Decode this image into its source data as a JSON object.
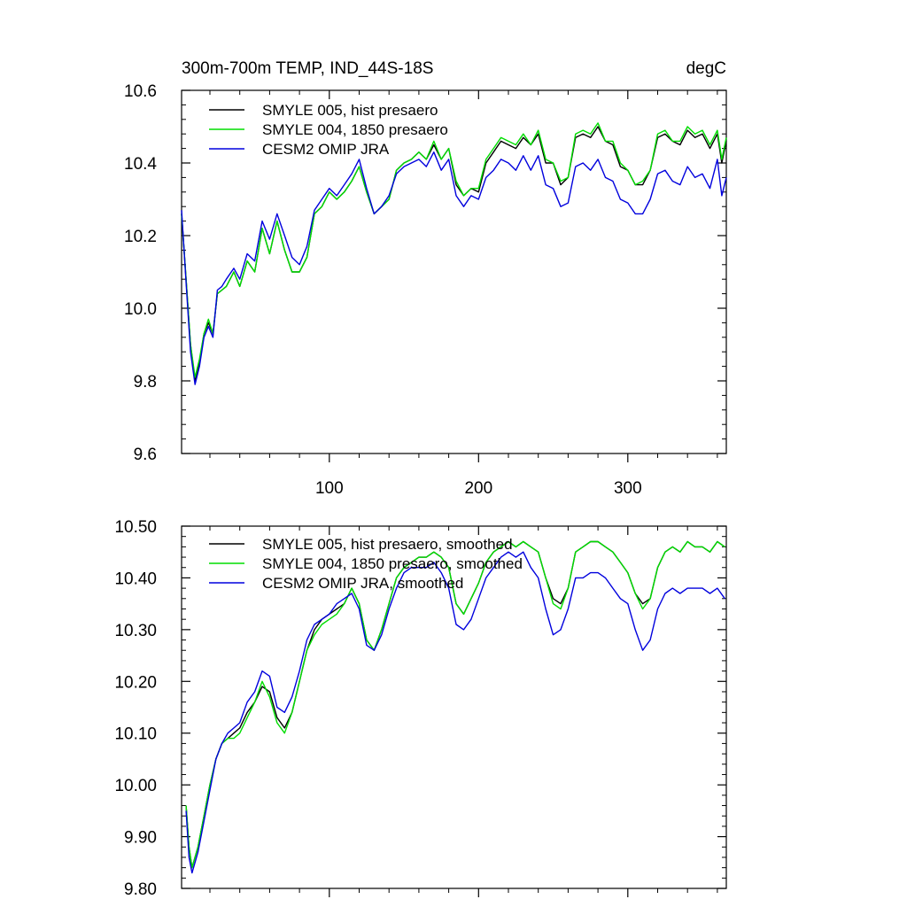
{
  "chart_data": [
    {
      "type": "line",
      "title": "300m-700m TEMP, IND_44S-18S",
      "units": "degC",
      "xlim": [
        1,
        366
      ],
      "ylim": [
        9.6,
        10.6
      ],
      "x_ticks": [
        100,
        200,
        300
      ],
      "x_tick_labels": [
        "100",
        "200",
        "300"
      ],
      "y_ticks": [
        9.6,
        9.8,
        10.0,
        10.2,
        10.4,
        10.6
      ],
      "y_tick_labels": [
        "9.6",
        "9.8",
        "10.0",
        "10.2",
        "10.4",
        "10.6"
      ],
      "grid": false,
      "legend": "top-left",
      "series": [
        {
          "name": "SMYLE 005, hist presaero",
          "color": "#000000",
          "x": [
            1,
            4,
            7,
            10,
            13,
            16,
            19,
            22,
            25,
            28,
            31,
            36,
            40,
            45,
            50,
            55,
            60,
            65,
            70,
            75,
            80,
            85,
            90,
            95,
            100,
            105,
            110,
            115,
            120,
            125,
            130,
            135,
            140,
            145,
            150,
            155,
            160,
            165,
            170,
            175,
            180,
            185,
            190,
            195,
            200,
            205,
            210,
            215,
            220,
            225,
            230,
            235,
            240,
            245,
            250,
            255,
            260,
            265,
            270,
            275,
            280,
            285,
            290,
            295,
            300,
            305,
            310,
            315,
            320,
            325,
            330,
            335,
            340,
            345,
            350,
            355,
            360,
            363,
            366
          ],
          "y": [
            10.26,
            10.08,
            9.9,
            9.8,
            9.85,
            9.93,
            9.96,
            9.93,
            10.04,
            10.05,
            10.06,
            10.1,
            10.06,
            10.13,
            10.1,
            10.22,
            10.15,
            10.24,
            10.16,
            10.1,
            10.1,
            10.14,
            10.26,
            10.28,
            10.32,
            10.3,
            10.32,
            10.35,
            10.39,
            10.32,
            10.26,
            10.28,
            10.3,
            10.38,
            10.4,
            10.41,
            10.43,
            10.41,
            10.45,
            10.41,
            10.44,
            10.34,
            10.31,
            10.33,
            10.32,
            10.4,
            10.43,
            10.46,
            10.45,
            10.44,
            10.47,
            10.45,
            10.48,
            10.4,
            10.4,
            10.34,
            10.36,
            10.47,
            10.48,
            10.47,
            10.5,
            10.46,
            10.45,
            10.39,
            10.38,
            10.34,
            10.34,
            10.38,
            10.47,
            10.48,
            10.46,
            10.45,
            10.49,
            10.47,
            10.48,
            10.44,
            10.48,
            10.4,
            10.46
          ]
        },
        {
          "name": "SMYLE 004, 1850 presaero",
          "color": "#00dd00",
          "x": [
            1,
            4,
            7,
            10,
            13,
            16,
            19,
            22,
            25,
            28,
            31,
            36,
            40,
            45,
            50,
            55,
            60,
            65,
            70,
            75,
            80,
            85,
            90,
            95,
            100,
            105,
            110,
            115,
            120,
            125,
            130,
            135,
            140,
            145,
            150,
            155,
            160,
            165,
            170,
            175,
            180,
            185,
            190,
            195,
            200,
            205,
            210,
            215,
            220,
            225,
            230,
            235,
            240,
            245,
            250,
            255,
            260,
            265,
            270,
            275,
            280,
            285,
            290,
            295,
            300,
            305,
            310,
            315,
            320,
            325,
            330,
            335,
            340,
            345,
            350,
            355,
            360,
            363,
            366
          ],
          "y": [
            10.26,
            10.08,
            9.9,
            9.81,
            9.86,
            9.93,
            9.97,
            9.93,
            10.04,
            10.05,
            10.06,
            10.1,
            10.06,
            10.13,
            10.1,
            10.22,
            10.15,
            10.24,
            10.16,
            10.1,
            10.1,
            10.14,
            10.26,
            10.28,
            10.32,
            10.3,
            10.32,
            10.35,
            10.39,
            10.32,
            10.26,
            10.28,
            10.3,
            10.38,
            10.4,
            10.41,
            10.43,
            10.41,
            10.46,
            10.41,
            10.44,
            10.35,
            10.31,
            10.33,
            10.33,
            10.41,
            10.44,
            10.47,
            10.46,
            10.45,
            10.48,
            10.45,
            10.49,
            10.41,
            10.4,
            10.35,
            10.36,
            10.48,
            10.49,
            10.48,
            10.51,
            10.46,
            10.46,
            10.4,
            10.38,
            10.34,
            10.35,
            10.38,
            10.48,
            10.49,
            10.46,
            10.46,
            10.5,
            10.48,
            10.49,
            10.45,
            10.49,
            10.41,
            10.47
          ]
        },
        {
          "name": "CESM2 OMIP JRA",
          "color": "#0000dd",
          "x": [
            1,
            4,
            7,
            10,
            13,
            16,
            19,
            22,
            25,
            28,
            31,
            36,
            40,
            45,
            50,
            55,
            60,
            65,
            70,
            75,
            80,
            85,
            90,
            95,
            100,
            105,
            110,
            115,
            120,
            125,
            130,
            135,
            140,
            145,
            150,
            155,
            160,
            165,
            170,
            175,
            180,
            185,
            190,
            195,
            200,
            205,
            210,
            215,
            220,
            225,
            230,
            235,
            240,
            245,
            250,
            255,
            260,
            265,
            270,
            275,
            280,
            285,
            290,
            295,
            300,
            305,
            310,
            315,
            320,
            325,
            330,
            335,
            340,
            345,
            350,
            355,
            360,
            363,
            366
          ],
          "y": [
            10.27,
            10.07,
            9.88,
            9.79,
            9.84,
            9.92,
            9.95,
            9.92,
            10.05,
            10.06,
            10.08,
            10.11,
            10.08,
            10.15,
            10.13,
            10.24,
            10.19,
            10.26,
            10.2,
            10.14,
            10.12,
            10.17,
            10.27,
            10.3,
            10.33,
            10.31,
            10.34,
            10.37,
            10.41,
            10.33,
            10.26,
            10.28,
            10.31,
            10.37,
            10.39,
            10.4,
            10.41,
            10.39,
            10.43,
            10.38,
            10.41,
            10.31,
            10.28,
            10.31,
            10.3,
            10.36,
            10.38,
            10.41,
            10.4,
            10.38,
            10.42,
            10.38,
            10.42,
            10.34,
            10.33,
            10.28,
            10.29,
            10.39,
            10.4,
            10.38,
            10.41,
            10.36,
            10.35,
            10.3,
            10.29,
            10.26,
            10.26,
            10.3,
            10.37,
            10.38,
            10.35,
            10.34,
            10.39,
            10.36,
            10.37,
            10.33,
            10.41,
            10.31,
            10.36
          ]
        }
      ]
    },
    {
      "type": "line",
      "title": "",
      "xlim": [
        1,
        366
      ],
      "ylim": [
        9.8,
        10.5
      ],
      "x_ticks": [
        100,
        200,
        300
      ],
      "x_tick_labels": [],
      "y_ticks": [
        9.8,
        9.9,
        10.0,
        10.1,
        10.2,
        10.3,
        10.4,
        10.5
      ],
      "y_tick_labels": [
        "9.80",
        "9.90",
        "10.00",
        "10.10",
        "10.20",
        "10.30",
        "10.40",
        "10.50"
      ],
      "grid": false,
      "legend": "top-left",
      "series": [
        {
          "name": "SMYLE 005, hist presaero, smoothed",
          "color": "#000000",
          "x": [
            4,
            6,
            8,
            12,
            16,
            20,
            24,
            28,
            32,
            36,
            40,
            45,
            50,
            55,
            60,
            65,
            70,
            75,
            80,
            85,
            90,
            95,
            100,
            105,
            110,
            115,
            120,
            125,
            130,
            135,
            140,
            145,
            150,
            155,
            160,
            165,
            170,
            175,
            180,
            185,
            190,
            195,
            200,
            205,
            210,
            215,
            220,
            225,
            230,
            235,
            240,
            245,
            250,
            255,
            260,
            265,
            270,
            275,
            280,
            285,
            290,
            295,
            300,
            305,
            310,
            315,
            320,
            325,
            330,
            335,
            340,
            345,
            350,
            355,
            360,
            365
          ],
          "y": [
            9.96,
            9.88,
            9.84,
            9.88,
            9.94,
            10.0,
            10.05,
            10.08,
            10.09,
            10.1,
            10.11,
            10.14,
            10.16,
            10.19,
            10.18,
            10.13,
            10.11,
            10.14,
            10.2,
            10.26,
            10.3,
            10.32,
            10.33,
            10.34,
            10.35,
            10.38,
            10.35,
            10.28,
            10.26,
            10.3,
            10.35,
            10.4,
            10.42,
            10.43,
            10.44,
            10.44,
            10.45,
            10.44,
            10.42,
            10.35,
            10.33,
            10.36,
            10.39,
            10.43,
            10.45,
            10.46,
            10.47,
            10.46,
            10.47,
            10.46,
            10.45,
            10.4,
            10.36,
            10.35,
            10.38,
            10.45,
            10.46,
            10.47,
            10.47,
            10.46,
            10.45,
            10.43,
            10.41,
            10.37,
            10.35,
            10.36,
            10.42,
            10.45,
            10.46,
            10.45,
            10.47,
            10.46,
            10.46,
            10.45,
            10.47,
            10.46
          ]
        },
        {
          "name": "SMYLE 004, 1850 presaero, smoothed",
          "color": "#00dd00",
          "x": [
            4,
            6,
            8,
            12,
            16,
            20,
            24,
            28,
            32,
            36,
            40,
            45,
            50,
            55,
            60,
            65,
            70,
            75,
            80,
            85,
            90,
            95,
            100,
            105,
            110,
            115,
            120,
            125,
            130,
            135,
            140,
            145,
            150,
            155,
            160,
            165,
            170,
            175,
            180,
            185,
            190,
            195,
            200,
            205,
            210,
            215,
            220,
            225,
            230,
            235,
            240,
            245,
            250,
            255,
            260,
            265,
            270,
            275,
            280,
            285,
            290,
            295,
            300,
            305,
            310,
            315,
            320,
            325,
            330,
            335,
            340,
            345,
            350,
            355,
            360,
            365
          ],
          "y": [
            9.96,
            9.88,
            9.84,
            9.88,
            9.94,
            10.0,
            10.05,
            10.08,
            10.09,
            10.09,
            10.1,
            10.13,
            10.16,
            10.2,
            10.17,
            10.12,
            10.1,
            10.14,
            10.2,
            10.26,
            10.29,
            10.31,
            10.32,
            10.33,
            10.35,
            10.38,
            10.35,
            10.28,
            10.26,
            10.3,
            10.35,
            10.4,
            10.42,
            10.43,
            10.44,
            10.44,
            10.45,
            10.44,
            10.42,
            10.35,
            10.33,
            10.36,
            10.39,
            10.43,
            10.45,
            10.46,
            10.47,
            10.46,
            10.47,
            10.46,
            10.45,
            10.4,
            10.35,
            10.34,
            10.38,
            10.45,
            10.46,
            10.47,
            10.47,
            10.46,
            10.45,
            10.43,
            10.41,
            10.37,
            10.34,
            10.36,
            10.42,
            10.45,
            10.46,
            10.45,
            10.47,
            10.46,
            10.46,
            10.45,
            10.47,
            10.46
          ]
        },
        {
          "name": "CESM2 OMIP JRA, smoothed",
          "color": "#0000dd",
          "x": [
            4,
            6,
            8,
            12,
            16,
            20,
            24,
            28,
            32,
            36,
            40,
            45,
            50,
            55,
            60,
            65,
            70,
            75,
            80,
            85,
            90,
            95,
            100,
            105,
            110,
            115,
            120,
            125,
            130,
            135,
            140,
            145,
            150,
            155,
            160,
            165,
            170,
            175,
            180,
            185,
            190,
            195,
            200,
            205,
            210,
            215,
            220,
            225,
            230,
            235,
            240,
            245,
            250,
            255,
            260,
            265,
            270,
            275,
            280,
            285,
            290,
            295,
            300,
            305,
            310,
            315,
            320,
            325,
            330,
            335,
            340,
            345,
            350,
            355,
            360,
            365
          ],
          "y": [
            9.95,
            9.86,
            9.83,
            9.87,
            9.93,
            9.99,
            10.05,
            10.08,
            10.1,
            10.11,
            10.12,
            10.16,
            10.18,
            10.22,
            10.21,
            10.15,
            10.14,
            10.17,
            10.22,
            10.28,
            10.31,
            10.32,
            10.33,
            10.35,
            10.36,
            10.37,
            10.34,
            10.27,
            10.26,
            10.29,
            10.34,
            10.38,
            10.41,
            10.42,
            10.42,
            10.42,
            10.43,
            10.41,
            10.38,
            10.31,
            10.3,
            10.32,
            10.36,
            10.4,
            10.42,
            10.44,
            10.45,
            10.44,
            10.45,
            10.42,
            10.4,
            10.34,
            10.29,
            10.3,
            10.34,
            10.4,
            10.4,
            10.41,
            10.41,
            10.4,
            10.38,
            10.36,
            10.35,
            10.3,
            10.26,
            10.28,
            10.34,
            10.37,
            10.38,
            10.37,
            10.38,
            10.38,
            10.38,
            10.37,
            10.38,
            10.36
          ]
        }
      ]
    }
  ]
}
